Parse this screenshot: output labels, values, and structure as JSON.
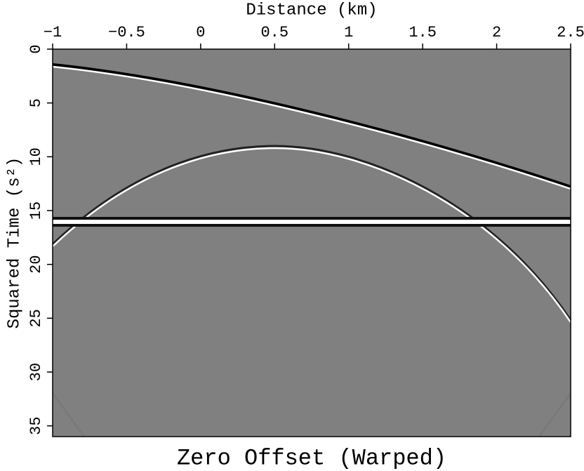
{
  "chart_data": {
    "type": "image",
    "title": "Zero Offset (Warped)",
    "xlabel": "Distance (km)",
    "ylabel": "Squared Time (s²)",
    "xlim": [
      -1,
      2.5
    ],
    "ylim": [
      0,
      36
    ],
    "xticks": [
      {
        "value": -1,
        "label": "−1"
      },
      {
        "value": -0.5,
        "label": "−0.5"
      },
      0,
      0.5,
      1,
      1.5,
      2,
      2.5
    ],
    "yticks": [
      0,
      5,
      10,
      15,
      20,
      25,
      30,
      35
    ],
    "background": "#808080"
  }
}
